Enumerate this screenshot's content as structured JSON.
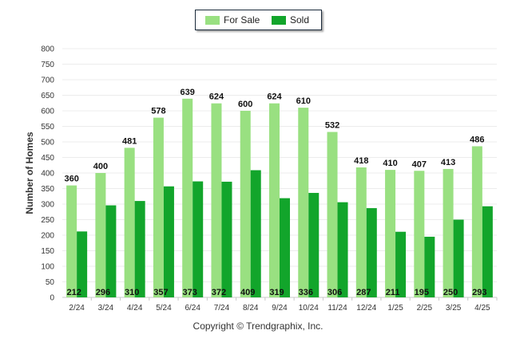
{
  "chart_data": {
    "type": "bar",
    "categories": [
      "2/24",
      "3/24",
      "4/24",
      "5/24",
      "6/24",
      "7/24",
      "8/24",
      "9/24",
      "10/24",
      "11/24",
      "12/24",
      "1/25",
      "2/25",
      "3/25",
      "4/25"
    ],
    "series": [
      {
        "name": "For Sale",
        "values": [
          360,
          400,
          481,
          578,
          639,
          624,
          600,
          624,
          610,
          532,
          418,
          410,
          407,
          413,
          486
        ],
        "color": "#99e081"
      },
      {
        "name": "Sold",
        "values": [
          212,
          296,
          310,
          357,
          373,
          372,
          409,
          319,
          336,
          306,
          287,
          211,
          195,
          250,
          293
        ],
        "color": "#12a52b"
      }
    ],
    "ylabel": "Number of Homes",
    "xlabel": "",
    "ylim": [
      0,
      800
    ],
    "yticks": [
      0,
      50,
      100,
      150,
      200,
      250,
      300,
      350,
      400,
      450,
      500,
      550,
      600,
      650,
      700,
      750,
      800
    ],
    "grid": true,
    "legend_position": "top-center",
    "footer": "Copyright © Trendgraphix, Inc."
  }
}
